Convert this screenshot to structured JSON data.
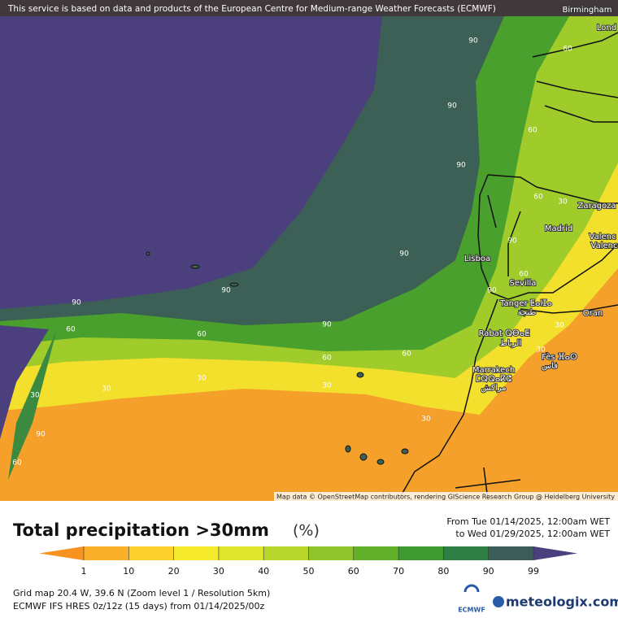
{
  "attribution_top": "This service is based on data and products of the European Centre for Medium-range Weather Forecasts (ECMWF)",
  "map_credit": "Map data © OpenStreetMap contributors, rendering GIScience Research Group @ Heidelberg University",
  "cities": [
    "Birmingham",
    "Lond",
    "Zaragoza",
    "Madrid",
    "Valenc",
    "Valenc",
    "Lisboa",
    "Sevilla",
    "Tanger ⵟⴰⵏⵊⴰ",
    "طنجة",
    "Rabat ⵕⴱⴰⵟ",
    "الرباط",
    "Fès ⴼⴰⵙ",
    "فاس",
    "Marrakech",
    "ⵎⵕⵕⴰⴽⵛ",
    "مراكش",
    "Oran"
  ],
  "contour_labels": [
    90,
    90,
    90,
    60,
    60,
    60,
    30,
    90,
    90,
    60,
    90,
    90,
    90,
    60,
    60,
    90,
    60,
    60,
    30,
    30,
    30,
    30,
    30,
    30,
    30,
    90,
    60
  ],
  "title": "Total precipitation >30mm",
  "unit": "(%)",
  "period_from": "From Tue 01/14/2025, 12:00am WET",
  "period_to": "to Wed 01/29/2025, 12:00am WET",
  "colorbar": {
    "ticks": [
      1,
      10,
      20,
      30,
      40,
      50,
      60,
      70,
      80,
      90,
      99
    ],
    "colors": [
      "#f7931e",
      "#fbb02a",
      "#fdd02c",
      "#f6ea2c",
      "#dfe42d",
      "#b9d62c",
      "#8fc42b",
      "#63b02b",
      "#3d9a2e",
      "#2f7f45",
      "#3d5e58",
      "#4b3f7e"
    ]
  },
  "grid_info": "Grid map 20.4 W, 39.6 N (Zoom level 1 / Resolution 5km)",
  "model_info": "ECMWF IFS HRES 0z/12z (15 days) from  01/14/2025/00z",
  "ecmwf_logo": "ECMWF",
  "brand": "meteologix.com"
}
